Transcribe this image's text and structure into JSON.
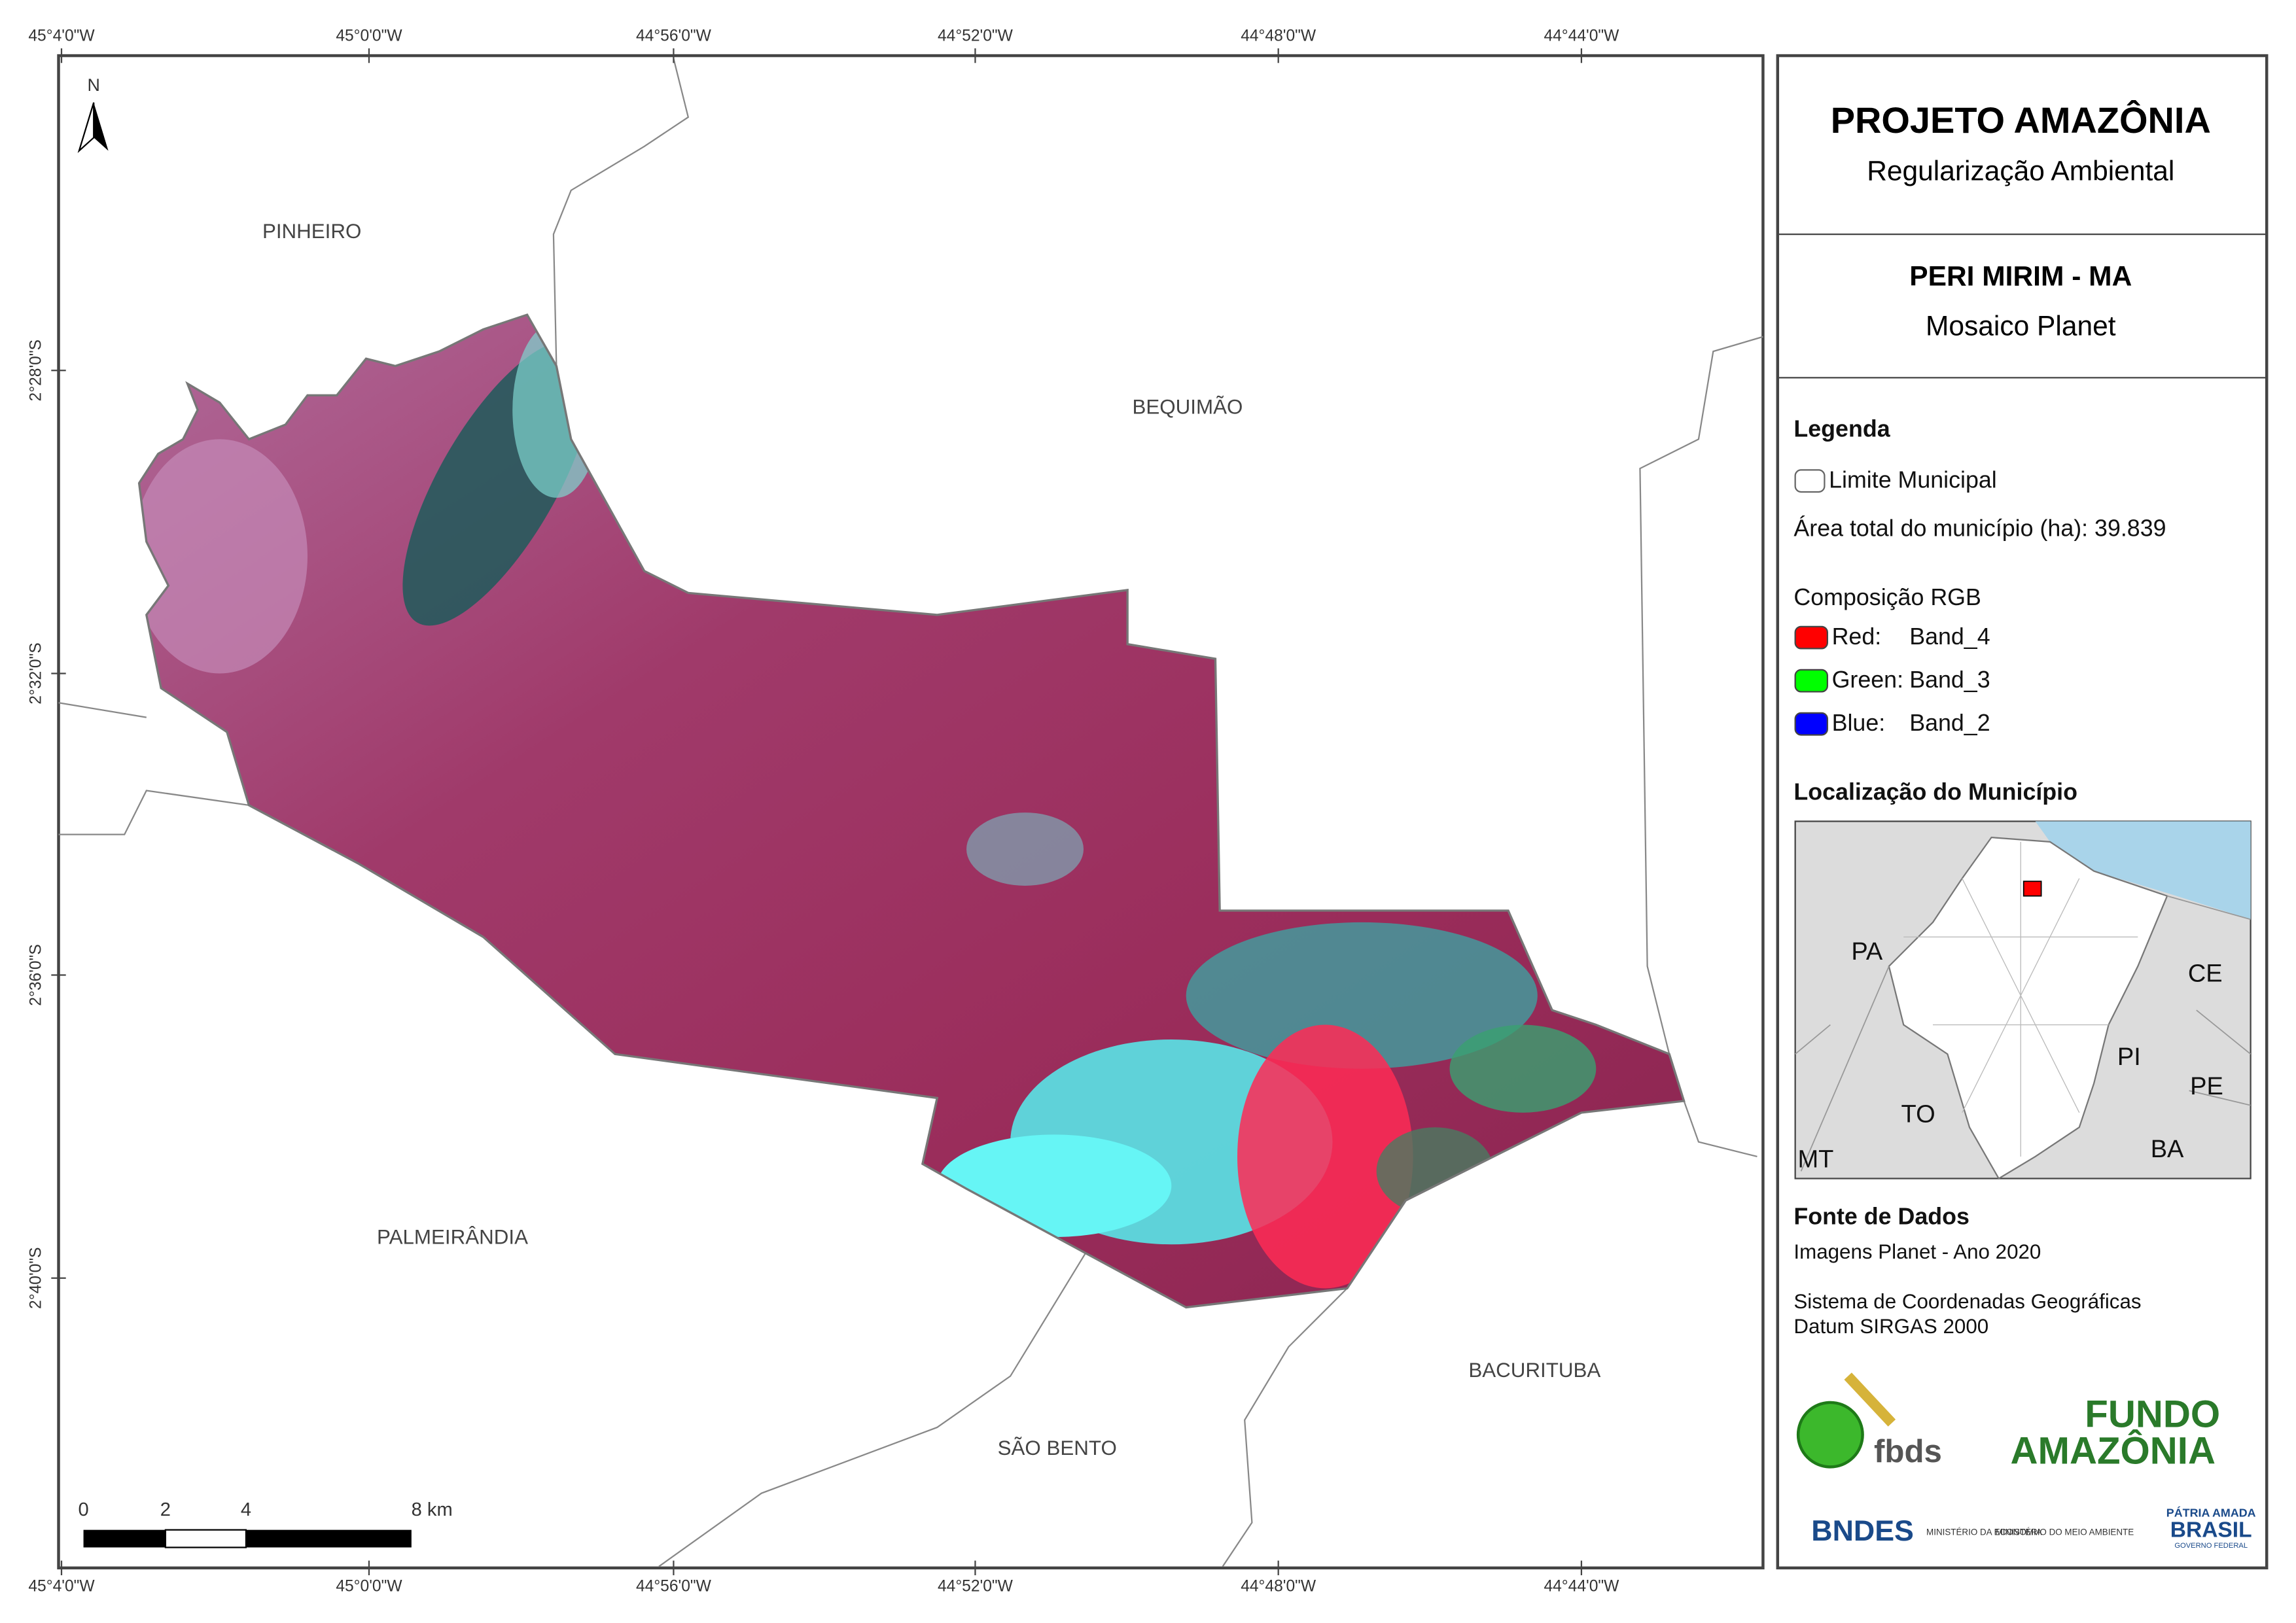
{
  "map": {
    "lon_labels": [
      "45°4'0\"W",
      "45°0'0\"W",
      "44°56'0\"W",
      "44°52'0\"W",
      "44°48'0\"W",
      "44°44'0\"W"
    ],
    "lat_labels": [
      "2°28'0\"S",
      "2°32'0\"S",
      "2°36'0\"S",
      "2°40'0\"S"
    ],
    "north": "N",
    "places": [
      "PINHEIRO",
      "BEQUIMÃO",
      "PALMEIRÂNDIA",
      "SÃO BENTO",
      "BACURITUBA"
    ],
    "scale_bar": [
      "0",
      "2",
      "4",
      "8 km"
    ]
  },
  "panel": {
    "title": "PROJETO AMAZÔNIA",
    "subtitle": "Regularização Ambiental",
    "municipality": "PERI MIRIM - MA",
    "mosaic": "Mosaico Planet",
    "legend": {
      "title": "Legenda",
      "boundary": "Limite Municipal",
      "area": "Área total do município (ha): 39.839",
      "rgb_title": "Composição RGB",
      "bands": [
        {
          "label": "Red:",
          "band": "Band_4",
          "color": "#ff0000"
        },
        {
          "label": "Green:",
          "band": "Band_3",
          "color": "#00ff00"
        },
        {
          "label": "Blue:",
          "band": "Band_2",
          "color": "#0000ff"
        }
      ]
    },
    "location": {
      "title": "Localização do Município",
      "states": [
        "PA",
        "CE",
        "PI",
        "PE",
        "TO",
        "BA",
        "MT"
      ]
    },
    "sources": {
      "title": "Fonte de Dados",
      "lines": [
        "Imagens Planet - Ano 2020",
        "Sistema de Coordenadas Geográficas",
        "Datum SIRGAS 2000"
      ]
    },
    "logos": [
      "fbds",
      "FUNDO",
      "AMAZÔNIA",
      "BNDES",
      "MINISTÉRIO DA ECONOMIA",
      "MINISTÉRIO DO MEIO AMBIENTE",
      "PÁTRIA AMADA",
      "BRASIL",
      "GOVERNO FEDERAL"
    ]
  }
}
